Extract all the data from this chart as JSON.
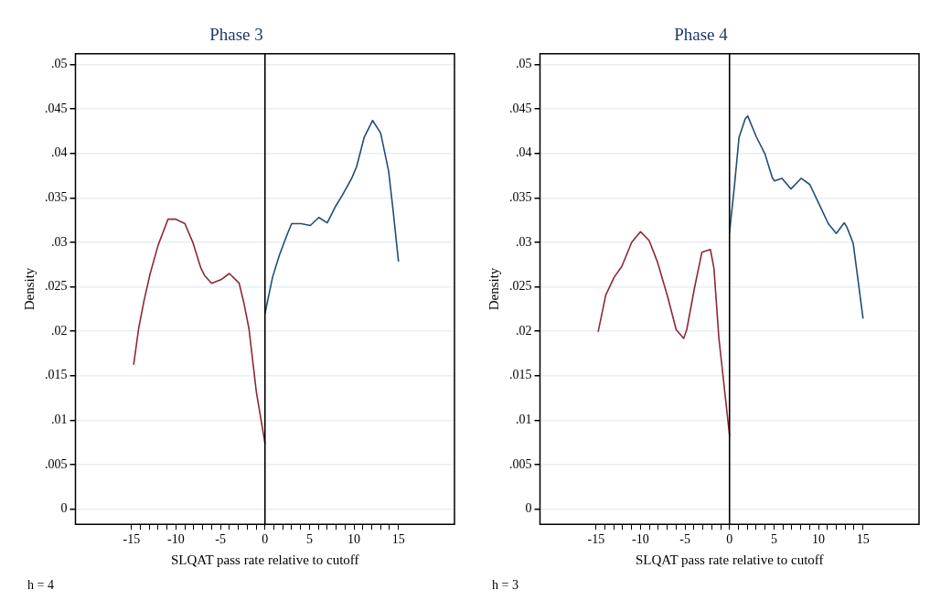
{
  "chart_data": [
    {
      "type": "line",
      "title": "Phase 3",
      "xlabel": "SLQAT pass rate relative to cutoff",
      "ylabel": "Density",
      "annotations": [
        "h = 4"
      ],
      "xlim": [
        -21.3,
        21.3
      ],
      "ylim": [
        -0.0017,
        0.0512
      ],
      "xticks": [
        -15,
        {
          "value": -14,
          "label": null
        },
        {
          "value": -13,
          "label": null
        },
        {
          "value": -12,
          "label": null
        },
        {
          "value": -11,
          "label": null
        },
        -10,
        {
          "value": -9,
          "label": null
        },
        {
          "value": -8,
          "label": null
        },
        {
          "value": -7,
          "label": null
        },
        {
          "value": -6,
          "label": null
        },
        -5,
        {
          "value": -4,
          "label": null
        },
        {
          "value": -3,
          "label": null
        },
        {
          "value": -2,
          "label": null
        },
        {
          "value": -1,
          "label": null
        },
        0,
        {
          "value": 1,
          "label": null
        },
        {
          "value": 2,
          "label": null
        },
        {
          "value": 3,
          "label": null
        },
        {
          "value": 4,
          "label": null
        },
        5,
        {
          "value": 6,
          "label": null
        },
        {
          "value": 7,
          "label": null
        },
        {
          "value": 8,
          "label": null
        },
        {
          "value": 9,
          "label": null
        },
        10,
        {
          "value": 11,
          "label": null
        },
        {
          "value": 12,
          "label": null
        },
        {
          "value": 13,
          "label": null
        },
        {
          "value": 14,
          "label": null
        },
        15
      ],
      "yticks": [
        0,
        {
          "value": 0.005,
          "label": ".005"
        },
        {
          "value": 0.01,
          "label": ".01"
        },
        {
          "value": 0.015,
          "label": ".015"
        },
        {
          "value": 0.02,
          "label": ".02"
        },
        {
          "value": 0.025,
          "label": ".025"
        },
        {
          "value": 0.03,
          "label": ".03"
        },
        {
          "value": 0.035,
          "label": ".035"
        },
        {
          "value": 0.04,
          "label": ".04"
        },
        {
          "value": 0.045,
          "label": ".045"
        },
        {
          "value": 0.05,
          "label": ".05"
        }
      ],
      "grid": "y",
      "marker": "none",
      "ref_lines": [
        {
          "axis": "x",
          "value": 0,
          "color": "#000000"
        }
      ],
      "series": [
        {
          "color": "#8b2a35",
          "x": [
            -14.75,
            -14.2,
            -13.6,
            -12.9,
            -12.0,
            -10.9,
            -10.0,
            -9.0,
            -8.07,
            -7.2,
            -6.8,
            -6.0,
            -4.95,
            -4.0,
            -2.9,
            -2.35,
            -1.8,
            -0.97,
            0
          ],
          "values": [
            0.0163,
            0.0203,
            0.0234,
            0.0265,
            0.0297,
            0.0326,
            0.0326,
            0.0321,
            0.0299,
            0.0271,
            0.0263,
            0.0254,
            0.0258,
            0.0265,
            0.0254,
            0.0231,
            0.0203,
            0.0132,
            0.0074
          ]
        },
        {
          "color": "#1f4e79",
          "x": [
            0,
            0.86,
            1.6,
            2.5,
            3.0,
            4.05,
            5.1,
            6.05,
            7.0,
            7.85,
            8.7,
            9.75,
            10.3,
            11.15,
            12.1,
            13.0,
            13.9,
            14.4,
            15.0
          ],
          "values": [
            0.022,
            0.0261,
            0.0285,
            0.0309,
            0.0321,
            0.0321,
            0.0319,
            0.0328,
            0.0322,
            0.0339,
            0.0353,
            0.0372,
            0.0385,
            0.0418,
            0.0437,
            0.0423,
            0.038,
            0.0336,
            0.0279
          ]
        }
      ]
    },
    {
      "type": "line",
      "title": "Phase 4",
      "xlabel": "SLQAT pass rate relative to cutoff",
      "ylabel": "Density",
      "annotations": [
        "h = 3"
      ],
      "xlim": [
        -21.3,
        21.3
      ],
      "ylim": [
        -0.0017,
        0.0512
      ],
      "xticks": [
        -15,
        {
          "value": -14,
          "label": null
        },
        {
          "value": -13,
          "label": null
        },
        {
          "value": -12,
          "label": null
        },
        {
          "value": -11,
          "label": null
        },
        -10,
        {
          "value": -9,
          "label": null
        },
        {
          "value": -8,
          "label": null
        },
        {
          "value": -7,
          "label": null
        },
        {
          "value": -6,
          "label": null
        },
        -5,
        {
          "value": -4,
          "label": null
        },
        {
          "value": -3,
          "label": null
        },
        {
          "value": -2,
          "label": null
        },
        {
          "value": -1,
          "label": null
        },
        0,
        {
          "value": 1,
          "label": null
        },
        {
          "value": 2,
          "label": null
        },
        {
          "value": 3,
          "label": null
        },
        {
          "value": 4,
          "label": null
        },
        5,
        {
          "value": 6,
          "label": null
        },
        {
          "value": 7,
          "label": null
        },
        {
          "value": 8,
          "label": null
        },
        {
          "value": 9,
          "label": null
        },
        10,
        {
          "value": 11,
          "label": null
        },
        {
          "value": 12,
          "label": null
        },
        {
          "value": 13,
          "label": null
        },
        {
          "value": 14,
          "label": null
        },
        15
      ],
      "yticks": [
        0,
        {
          "value": 0.005,
          "label": ".005"
        },
        {
          "value": 0.01,
          "label": ".01"
        },
        {
          "value": 0.015,
          "label": ".015"
        },
        {
          "value": 0.02,
          "label": ".02"
        },
        {
          "value": 0.025,
          "label": ".025"
        },
        {
          "value": 0.03,
          "label": ".03"
        },
        {
          "value": 0.035,
          "label": ".035"
        },
        {
          "value": 0.04,
          "label": ".04"
        },
        {
          "value": 0.045,
          "label": ".045"
        },
        {
          "value": 0.05,
          "label": ".05"
        }
      ],
      "grid": "y",
      "marker": "none",
      "ref_lines": [
        {
          "axis": "x",
          "value": 0,
          "color": "#000000"
        }
      ],
      "series": [
        {
          "color": "#8b2a35",
          "x": [
            -14.75,
            -13.9,
            -12.95,
            -12.1,
            -11.0,
            -10.0,
            -9.03,
            -8.1,
            -6.9,
            -6.0,
            -5.15,
            -4.8,
            -3.95,
            -3.1,
            -2.15,
            -1.75,
            -1.2,
            0
          ],
          "values": [
            0.02,
            0.0241,
            0.0261,
            0.0273,
            0.03,
            0.0312,
            0.0302,
            0.0278,
            0.0237,
            0.0202,
            0.0192,
            0.0202,
            0.0248,
            0.0289,
            0.0292,
            0.0271,
            0.0193,
            0.0083
          ]
        },
        {
          "color": "#1f4e79",
          "x": [
            0,
            0.55,
            1.07,
            1.77,
            2.05,
            3.0,
            4.0,
            4.8,
            5.05,
            5.9,
            6.9,
            8.05,
            9.03,
            10.07,
            11.1,
            12.0,
            12.9,
            13.2,
            13.9,
            14.4,
            15.0
          ],
          "values": [
            0.0311,
            0.0363,
            0.0418,
            0.0439,
            0.0442,
            0.0419,
            0.0399,
            0.0373,
            0.0369,
            0.0372,
            0.036,
            0.0372,
            0.0365,
            0.0343,
            0.0321,
            0.031,
            0.0322,
            0.0317,
            0.0299,
            0.0261,
            0.0215
          ]
        }
      ]
    }
  ]
}
